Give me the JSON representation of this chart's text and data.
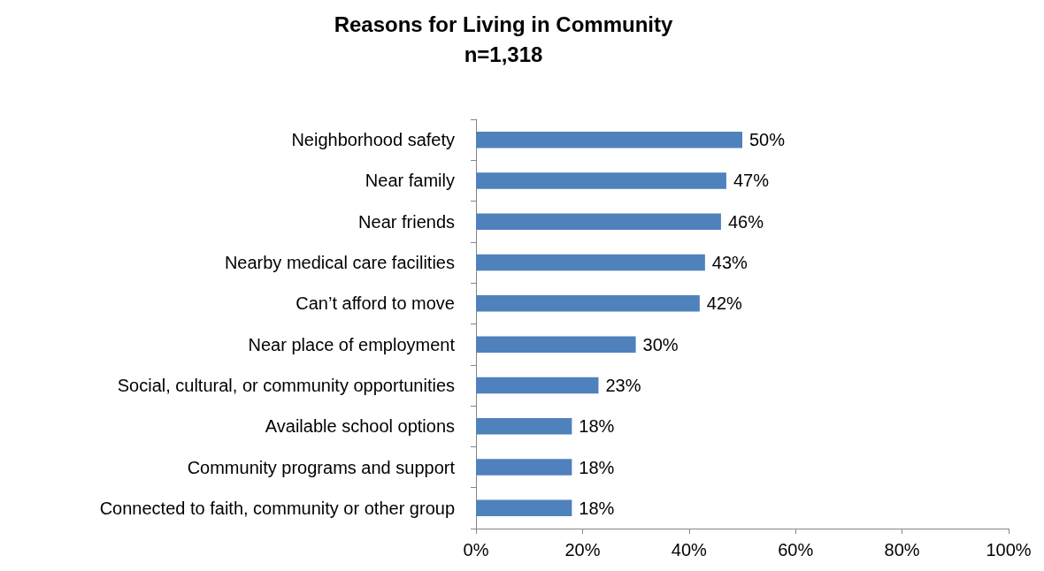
{
  "chart_data": {
    "type": "bar",
    "orientation": "horizontal",
    "title": "Reasons for Living in Community",
    "subtitle": "n=1,318",
    "categories": [
      "Neighborhood safety",
      "Near family",
      "Near friends",
      "Nearby medical care facilities",
      "Can’t afford to move",
      "Near place of employment",
      "Social, cultural, or community opportunities",
      "Available school options",
      "Community programs and support",
      "Connected to faith, community or other group"
    ],
    "values": [
      50,
      47,
      46,
      43,
      42,
      30,
      23,
      18,
      18,
      18
    ],
    "value_labels": [
      "50%",
      "47%",
      "46%",
      "43%",
      "42%",
      "30%",
      "23%",
      "18%",
      "18%",
      "18%"
    ],
    "color": "#4f81bd",
    "xlim": [
      0,
      100
    ],
    "xticks": [
      {
        "value": 0,
        "label": "0%"
      },
      {
        "value": 20,
        "label": "20%"
      },
      {
        "value": 40,
        "label": "40%"
      },
      {
        "value": 60,
        "label": "60%"
      },
      {
        "value": 80,
        "label": "80%"
      },
      {
        "value": 100,
        "label": "100%"
      }
    ],
    "grid": false
  }
}
